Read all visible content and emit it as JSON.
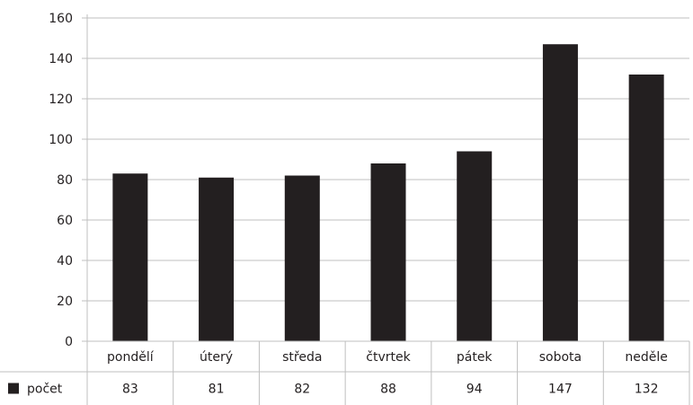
{
  "chart_data": {
    "type": "bar",
    "categories": [
      "pondělí",
      "úterý",
      "středa",
      "čtvrtek",
      "pátek",
      "sobota",
      "neděle"
    ],
    "series": [
      {
        "name": "počet",
        "values": [
          83,
          81,
          82,
          88,
          94,
          147,
          132
        ],
        "color": "#231f20"
      }
    ],
    "yticks": [
      0,
      20,
      40,
      60,
      80,
      100,
      120,
      140,
      160
    ],
    "ylim": [
      0,
      160
    ],
    "grid": true,
    "legend": "left-of-table",
    "data_table": true,
    "colors": {
      "bar": "#231f20",
      "grid": "#bfbfbf",
      "text": "#231f20"
    }
  }
}
